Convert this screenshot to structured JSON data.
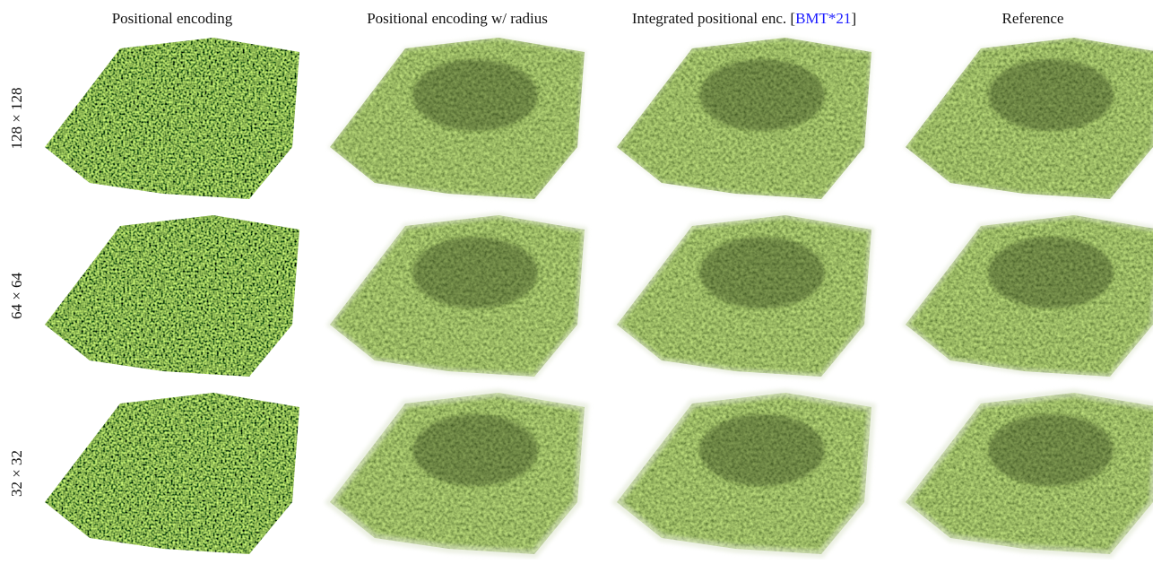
{
  "columns": [
    {
      "title": "Positional encoding"
    },
    {
      "title": "Positional encoding w/ radius"
    },
    {
      "title": "Integrated positional enc. [",
      "citation": "BMT*21",
      "title_end": "]"
    },
    {
      "title": "Reference"
    }
  ],
  "rows": [
    {
      "label": "128 × 128"
    },
    {
      "label": "64 × 64"
    },
    {
      "label": "32 × 32"
    }
  ]
}
